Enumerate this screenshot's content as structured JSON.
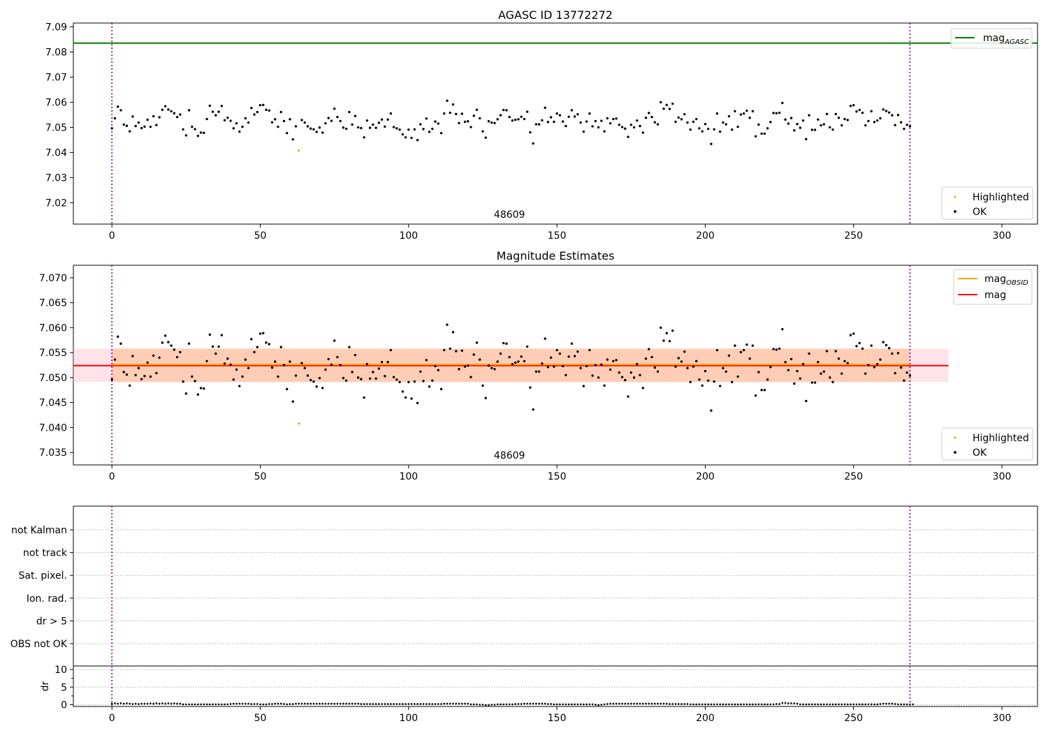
{
  "chart_data": [
    {
      "id": "agasc",
      "type": "scatter",
      "title": "AGASC ID 13772272",
      "xlim": [
        -13,
        312
      ],
      "ylim": [
        7.0115,
        7.0915
      ],
      "xticks": [
        0,
        50,
        100,
        150,
        200,
        250,
        300
      ],
      "yticks": [
        7.02,
        7.03,
        7.04,
        7.05,
        7.06,
        7.07,
        7.08,
        7.09
      ],
      "ytick_decimals": 2,
      "obsid_label": "48609",
      "obsid_label_x": 134,
      "obs_lines_x": [
        0,
        269
      ],
      "agasc_mag": 7.0835,
      "highlighted": [
        {
          "x": 63,
          "y": 7.0408
        }
      ],
      "legend_line": {
        "label": "mag",
        "sub": "AGASC",
        "color": "#008000"
      },
      "legend_points": [
        {
          "label": "Highlighted",
          "color": "#ffa500"
        },
        {
          "label": "OK",
          "color": "#000000"
        }
      ]
    },
    {
      "id": "estimates",
      "type": "scatter",
      "title": "Magnitude Estimates",
      "xlim": [
        -13,
        312
      ],
      "ylim": [
        7.0325,
        7.0725
      ],
      "xticks": [
        0,
        50,
        100,
        150,
        200,
        250,
        300
      ],
      "yticks": [
        7.035,
        7.04,
        7.045,
        7.05,
        7.055,
        7.06,
        7.065,
        7.07
      ],
      "ytick_decimals": 3,
      "obsid_label": "48609",
      "obsid_label_x": 134,
      "obs_lines_x": [
        0,
        269
      ],
      "mag": 7.0524,
      "mag_obsid": 7.0524,
      "band_low": 7.0491,
      "band_high": 7.0558,
      "band_xmax": 282,
      "highlighted": [
        {
          "x": 63,
          "y": 7.0408
        }
      ],
      "legend_lines": [
        {
          "label": "mag",
          "sub": "OBSID",
          "color": "#ffa500"
        },
        {
          "label": "mag",
          "sub": "",
          "color": "#ff0000"
        }
      ],
      "legend_points": [
        {
          "label": "Highlighted",
          "color": "#ffa500"
        },
        {
          "label": "OK",
          "color": "#000000"
        }
      ]
    },
    {
      "id": "flags",
      "type": "scatter",
      "xlim": [
        -13,
        312
      ],
      "categories": [
        "OBS not OK",
        "dr > 5",
        "Ion. rad.",
        "Sat. pixel.",
        "not track",
        "not Kalman"
      ],
      "obs_lines_x": [
        0,
        269
      ]
    },
    {
      "id": "dr",
      "type": "scatter",
      "ylabel": "dr",
      "xlim": [
        -13,
        312
      ],
      "ylim": [
        -0.5,
        11
      ],
      "xticks": [
        0,
        50,
        100,
        150,
        200,
        250,
        300
      ],
      "yticks": [
        0,
        5,
        10
      ],
      "obs_lines_x": [
        0,
        269
      ],
      "dr_values": [
        0.3,
        0.4,
        0.3,
        0.4,
        0.3,
        0.4,
        0.3,
        0.2,
        0.3,
        0.2,
        0.3,
        0.3,
        0.3,
        0.4,
        0.3,
        0.4,
        0.3,
        0.4,
        0.3,
        0.4,
        0.3,
        0.4,
        0.3,
        0.3,
        0.1,
        0.1,
        0.1,
        0.1,
        0.1,
        0.1,
        0.1,
        0.1,
        0.1,
        0.1,
        0.1,
        0.1,
        0.1,
        0.1,
        0.1,
        0.1,
        0.2,
        0.3,
        0.3,
        0.3,
        0.3,
        0.3,
        0.3,
        0.2,
        0.2,
        0.2,
        0.1,
        0.1,
        0.1,
        0.2,
        0.2,
        0.3,
        0.3,
        0.3,
        0.2,
        0.1,
        0.2,
        0.2,
        0.3,
        0.3,
        0.3,
        0.3,
        0.3,
        0.3,
        0.3,
        0.3,
        0.3,
        0.3,
        0.3,
        0.3,
        0.3,
        0.3,
        0.3,
        0.3,
        0.3,
        0.3,
        0.3,
        0.3,
        0.3,
        0.3,
        0.2,
        0.2,
        0.2,
        0.2,
        0.2,
        0.2,
        0.2,
        0.2,
        0.2,
        0.2,
        0.2,
        0.2,
        0.2,
        0.2,
        0.2,
        0.2,
        0.2,
        0.2,
        0.2,
        0.2,
        0.2,
        0.2,
        0.2,
        0.2,
        0.2,
        0.2,
        0.2,
        0.2,
        0.3,
        0.3,
        0.3,
        0.3,
        0.3,
        0.3,
        0.3,
        0.3,
        0.3,
        0.1,
        0.1,
        0.1,
        0.0,
        0.0,
        -0.1,
        -0.1,
        0.0,
        0.0,
        0.1,
        0.1,
        0.1,
        0.1,
        0.1,
        0.1,
        0.2,
        0.2,
        0.2,
        0.3,
        0.3,
        0.3,
        0.3,
        0.3,
        0.3,
        0.3,
        0.3,
        0.2,
        0.2,
        0.1,
        0.1,
        0.1,
        0.1,
        0.1,
        0.1,
        0.1,
        0.1,
        0.1,
        0.1,
        0.1,
        0.1,
        0.1,
        0.1,
        0.0,
        -0.1,
        0.0,
        0.1,
        0.2,
        0.3,
        0.3,
        0.3,
        0.3,
        0.3,
        0.3,
        0.3,
        0.3,
        0.3,
        0.3,
        0.3,
        0.3,
        0.3,
        0.3,
        0.3,
        0.3,
        0.3,
        0.3,
        0.3,
        0.3,
        0.2,
        0.2,
        0.2,
        0.2,
        0.2,
        0.2,
        0.2,
        0.1,
        0.1,
        0.1,
        0.1,
        0.1,
        0.1,
        0.1,
        0.1,
        0.1,
        0.1,
        0.1,
        0.1,
        0.1,
        0.1,
        0.1,
        0.1,
        0.1,
        0.1,
        0.1,
        0.1,
        0.1,
        0.1,
        0.1,
        0.1,
        0.1,
        0.1,
        0.1,
        0.1,
        0.1,
        0.2,
        0.2,
        0.5,
        0.5,
        0.4,
        0.4,
        0.4,
        0.3,
        0.1,
        0.1,
        0.1,
        0.1,
        0.1,
        0.1,
        0.1,
        0.1,
        0.1,
        0.1,
        0.1,
        0.1,
        0.1,
        0.1,
        0.1,
        0.1,
        0.1,
        0.1,
        0.1,
        0.1,
        0.1,
        0.1,
        0.1,
        0.1,
        0.1,
        0.1,
        0.1,
        0.2,
        0.3,
        0.3,
        0.3,
        0.3,
        0.2,
        0.1,
        0.1,
        0.1,
        0.1,
        0.1,
        0.1
      ],
      "mag_values": [
        7.0496,
        7.0536,
        7.0582,
        7.0568,
        7.0511,
        7.0506,
        7.0484,
        7.0543,
        7.0505,
        7.0519,
        7.0497,
        7.0503,
        7.053,
        7.0502,
        7.0544,
        7.0509,
        7.054,
        7.057,
        7.0584,
        7.0571,
        7.0564,
        7.0556,
        7.0541,
        7.0551,
        7.0492,
        7.0468,
        7.0568,
        7.0502,
        7.0493,
        7.0466,
        7.0479,
        7.0478,
        7.0533,
        7.0586,
        7.0562,
        7.0548,
        7.0562,
        7.0585,
        7.0528,
        7.0538,
        7.0526,
        7.0496,
        7.0516,
        7.0483,
        7.0502,
        7.0536,
        7.0519,
        7.0577,
        7.0551,
        7.0561,
        7.0588,
        7.0589,
        7.057,
        7.0567,
        7.052,
        7.0532,
        7.0502,
        7.0561,
        7.0525,
        7.0477,
        7.0532,
        7.0452,
        7.0504,
        7.0408,
        7.0529,
        7.0519,
        7.0504,
        7.0495,
        7.0492,
        7.0482,
        7.0499,
        7.0479,
        7.0516,
        7.0537,
        7.0526,
        7.0574,
        7.0541,
        7.0525,
        7.0499,
        7.0494,
        7.0561,
        7.0511,
        7.0545,
        7.05,
        7.0497,
        7.046,
        7.0527,
        7.0498,
        7.0511,
        7.0498,
        7.0518,
        7.0531,
        7.0503,
        7.0531,
        7.0555,
        7.0501,
        7.0496,
        7.0491,
        7.0472,
        7.046,
        7.0491,
        7.0458,
        7.0492,
        7.0449,
        7.0512,
        7.0493,
        7.0535,
        7.0482,
        7.0494,
        7.0523,
        7.0515,
        7.0477,
        7.0555,
        7.0606,
        7.0558,
        7.0591,
        7.0553,
        7.0517,
        7.0554,
        7.0522,
        7.0524,
        7.0501,
        7.0546,
        7.057,
        7.0536,
        7.0484,
        7.0459,
        7.0524,
        7.0519,
        7.0517,
        7.0532,
        7.0548,
        7.0569,
        7.0568,
        7.0541,
        7.0527,
        7.053,
        7.0532,
        7.0542,
        7.0533,
        7.0562,
        7.048,
        7.0436,
        7.0512,
        7.0512,
        7.0528,
        7.0578,
        7.0521,
        7.054,
        7.0522,
        7.0555,
        7.0548,
        7.0523,
        7.0505,
        7.0542,
        7.0568,
        7.0543,
        7.0552,
        7.0519,
        7.0483,
        7.0523,
        7.0555,
        7.0504,
        7.0525,
        7.05,
        7.0526,
        7.0484,
        7.0536,
        7.0516,
        7.0533,
        7.0535,
        7.051,
        7.0501,
        7.0495,
        7.0462,
        7.051,
        7.05,
        7.0527,
        7.0505,
        7.0479,
        7.0538,
        7.0557,
        7.0541,
        7.052,
        7.0512,
        7.06,
        7.0574,
        7.0589,
        7.0573,
        7.0594,
        7.0522,
        7.0539,
        7.0532,
        7.0552,
        7.0519,
        7.0491,
        7.0522,
        7.0533,
        7.0496,
        7.0484,
        7.0513,
        7.0494,
        7.0434,
        7.0492,
        7.0555,
        7.0483,
        7.0519,
        7.0512,
        7.0544,
        7.0491,
        7.0564,
        7.0502,
        7.0551,
        7.0555,
        7.0566,
        7.0538,
        7.0564,
        7.0464,
        7.0511,
        7.0475,
        7.0475,
        7.0496,
        7.0521,
        7.0557,
        7.0556,
        7.0558,
        7.0597,
        7.0531,
        7.0515,
        7.0537,
        7.0488,
        7.0513,
        7.0498,
        7.0527,
        7.0453,
        7.0548,
        7.049,
        7.049,
        7.0531,
        7.0508,
        7.0512,
        7.0553,
        7.05,
        7.0491,
        7.0553,
        7.0538,
        7.0508,
        7.0533,
        7.0529,
        7.0585,
        7.0588,
        7.0563,
        7.0569,
        7.0558,
        7.0508,
        7.0525,
        7.0564,
        7.0521,
        7.0527,
        7.0536,
        7.0571,
        7.0565,
        7.0559,
        7.0548,
        7.0509,
        7.0549,
        7.052,
        7.0494,
        7.051,
        7.0504
      ]
    }
  ]
}
